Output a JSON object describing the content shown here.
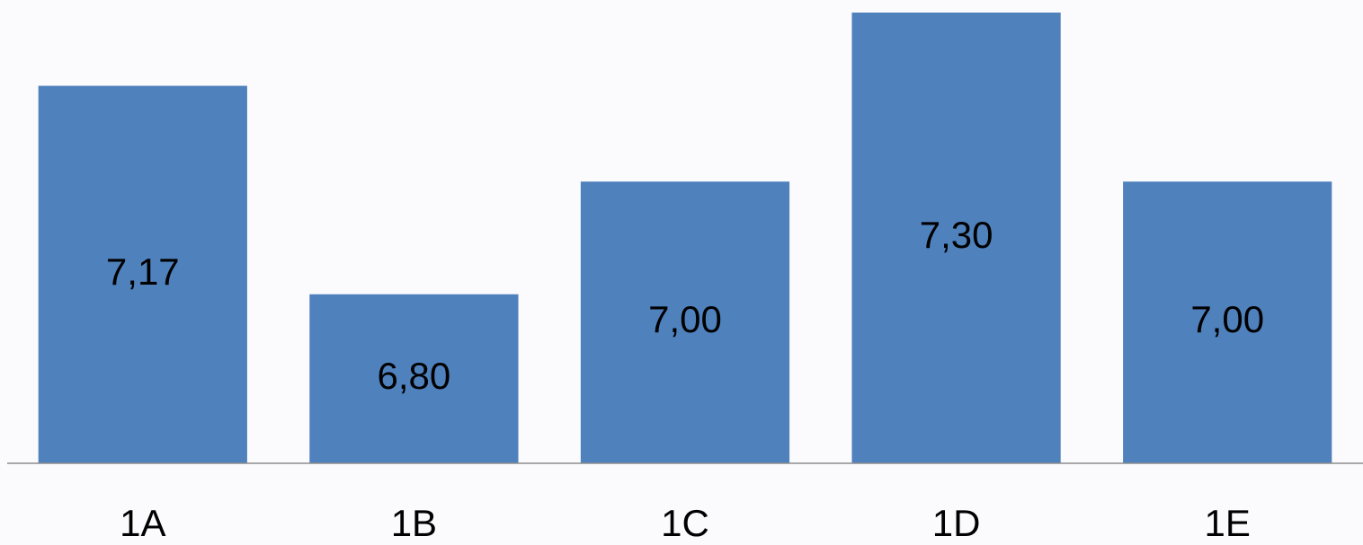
{
  "chart_data": {
    "type": "bar",
    "categories": [
      "1A",
      "1B",
      "1C",
      "1D",
      "1E"
    ],
    "values": [
      7.17,
      6.8,
      7.0,
      7.3,
      7.0
    ],
    "value_labels": [
      "7,17",
      "6,80",
      "7,00",
      "7,30",
      "7,00"
    ],
    "color": "#4f81bd",
    "ylim": [
      6.5,
      7.3
    ]
  }
}
